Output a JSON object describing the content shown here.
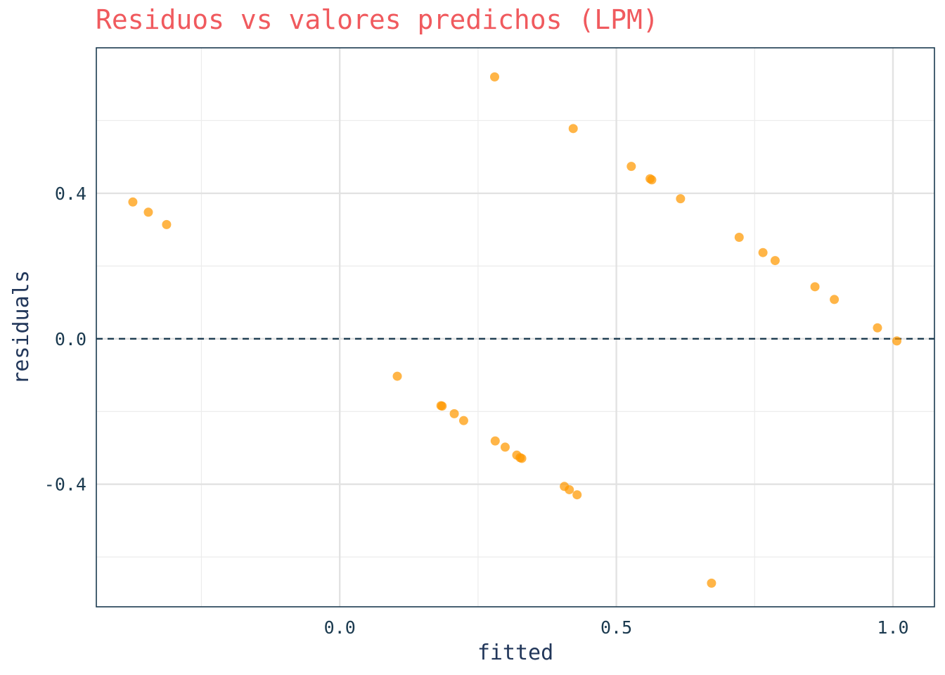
{
  "chart_data": {
    "type": "scatter",
    "title": "Residuos vs valores predichos (LPM)",
    "xlabel": "fitted",
    "ylabel": "residuals",
    "xlim": [
      -0.44,
      1.075
    ],
    "ylim": [
      -0.737,
      0.8
    ],
    "xticks": [
      0.0,
      0.5,
      1.0
    ],
    "xtick_labels": [
      "0.0",
      "0.5",
      "1.0"
    ],
    "yticks": [
      0.4,
      0.0,
      -0.4
    ],
    "ytick_labels": [
      "0.4",
      "0.0",
      "-0.4"
    ],
    "x_minor_gridlines": [
      -0.25,
      0.25,
      0.75
    ],
    "y_minor_gridlines": [
      0.6,
      0.2,
      -0.2,
      -0.6
    ],
    "reference_line": {
      "y": 0.0,
      "style": "dashed",
      "color": "#1b3a4f"
    },
    "point_color": "#ff9800",
    "grid": true,
    "legend": "none",
    "points": [
      {
        "x": -0.374,
        "y": 0.376
      },
      {
        "x": -0.346,
        "y": 0.348
      },
      {
        "x": -0.313,
        "y": 0.314
      },
      {
        "x": 0.28,
        "y": 0.72
      },
      {
        "x": 0.422,
        "y": 0.578
      },
      {
        "x": 0.527,
        "y": 0.474
      },
      {
        "x": 0.561,
        "y": 0.44
      },
      {
        "x": 0.564,
        "y": 0.437
      },
      {
        "x": 0.616,
        "y": 0.385
      },
      {
        "x": 0.722,
        "y": 0.279
      },
      {
        "x": 0.765,
        "y": 0.237
      },
      {
        "x": 0.787,
        "y": 0.215
      },
      {
        "x": 0.859,
        "y": 0.143
      },
      {
        "x": 0.894,
        "y": 0.108
      },
      {
        "x": 0.972,
        "y": 0.03
      },
      {
        "x": 1.007,
        "y": -0.006
      },
      {
        "x": 0.104,
        "y": -0.103
      },
      {
        "x": 0.183,
        "y": -0.184
      },
      {
        "x": 0.185,
        "y": -0.185
      },
      {
        "x": 0.207,
        "y": -0.206
      },
      {
        "x": 0.224,
        "y": -0.225
      },
      {
        "x": 0.281,
        "y": -0.281
      },
      {
        "x": 0.299,
        "y": -0.298
      },
      {
        "x": 0.32,
        "y": -0.32
      },
      {
        "x": 0.326,
        "y": -0.327
      },
      {
        "x": 0.329,
        "y": -0.329
      },
      {
        "x": 0.406,
        "y": -0.406
      },
      {
        "x": 0.415,
        "y": -0.415
      },
      {
        "x": 0.429,
        "y": -0.429
      },
      {
        "x": 0.672,
        "y": -0.672
      }
    ]
  }
}
